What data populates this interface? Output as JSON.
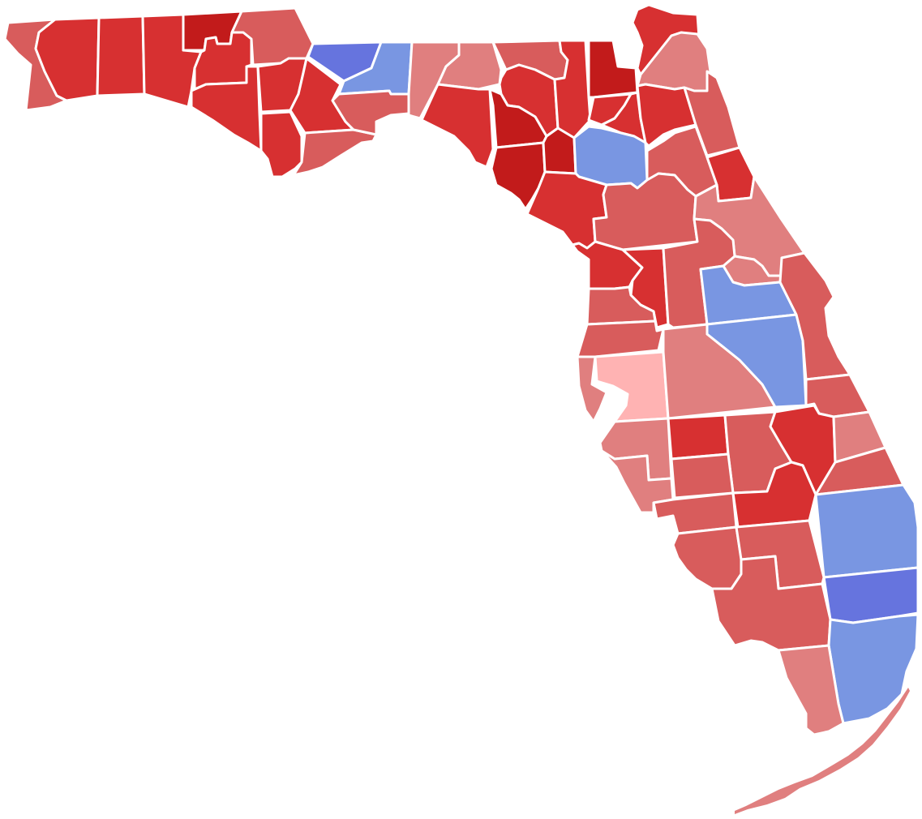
{
  "palette": {
    "r_dark": "#c21b1b",
    "r_mid": "#d73031",
    "r_light": "#d85c5c",
    "r_pale": "#e07f7f",
    "r_faint": "#ffb3b3",
    "d_light": "#7996e2",
    "d_dark": "#6674de",
    "outline": "#ffffff",
    "background": "#ffffff"
  },
  "map": {
    "region": "Florida",
    "unit": "county",
    "labels_shown": false,
    "legend_shown": false
  }
}
